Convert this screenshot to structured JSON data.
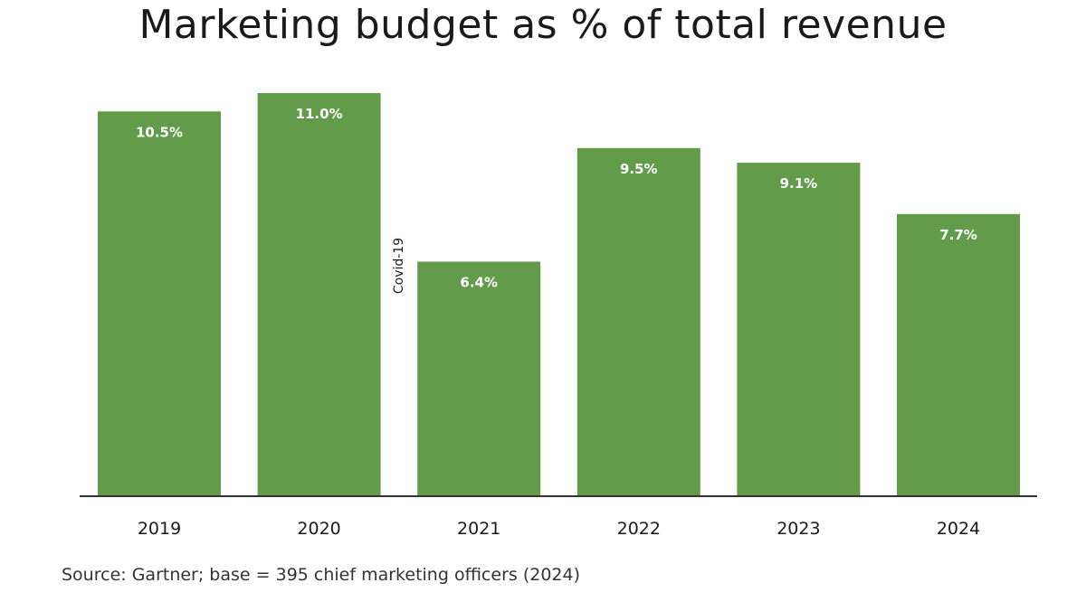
{
  "chart_data": {
    "type": "bar",
    "title": "Marketing budget as % of total revenue",
    "categories": [
      "2019",
      "2020",
      "2021",
      "2022",
      "2023",
      "2024"
    ],
    "values": [
      10.5,
      11.0,
      6.4,
      9.5,
      9.1,
      7.7
    ],
    "value_labels": [
      "10.5%",
      "11.0%",
      "6.4%",
      "9.5%",
      "9.1%",
      "7.7%"
    ],
    "xlabel": "",
    "ylabel": "",
    "ylim": [
      0,
      11
    ],
    "grid": false,
    "bar_color": "#629c4a",
    "annotations": [
      {
        "text": "Covid-19",
        "between": [
          "2020",
          "2021"
        ],
        "orientation": "vertical"
      }
    ],
    "source": "Source: Gartner; base = 395 chief marketing officers (2024)"
  }
}
